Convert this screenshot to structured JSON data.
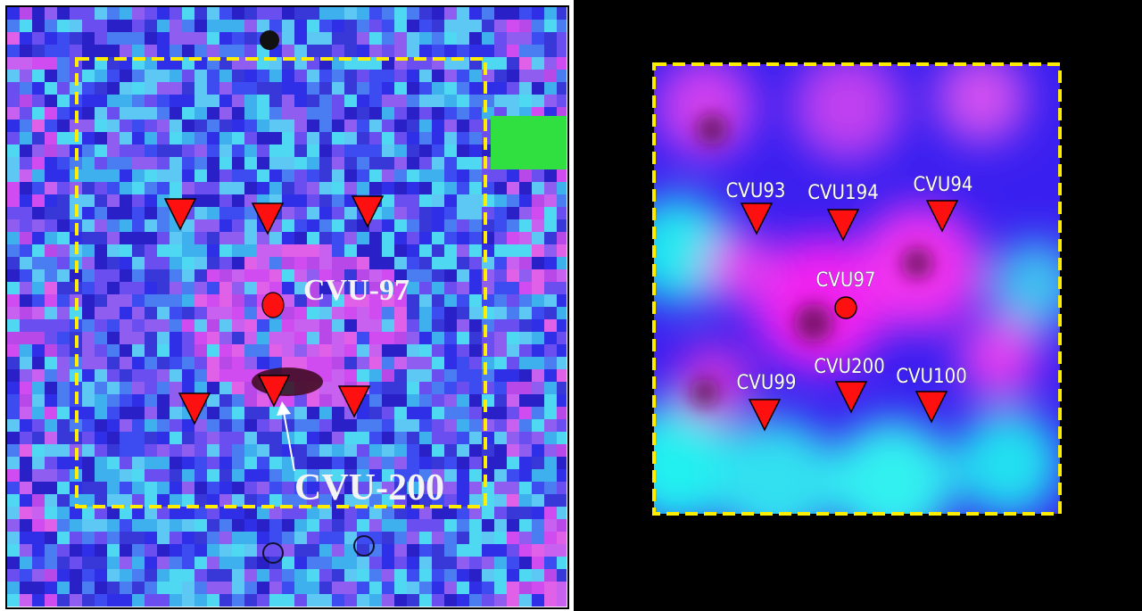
{
  "left_panel": {
    "labels": [
      "CVU-97",
      "CVU-200"
    ]
  },
  "right_panel": {
    "labels": [
      "CVU93",
      "CVU194",
      "CVU94",
      "CVU97",
      "CVU99",
      "CVU200",
      "CVU100"
    ]
  }
}
